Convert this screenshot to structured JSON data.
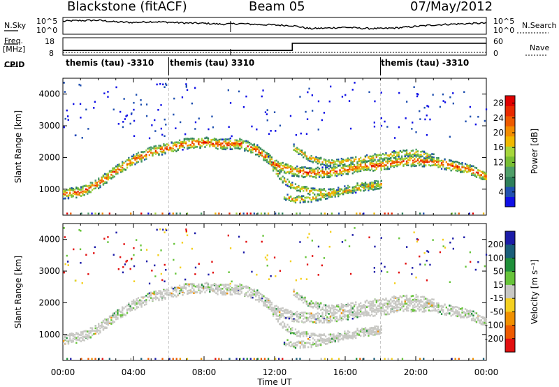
{
  "header": {
    "station": "Blackstone (fitACF)",
    "beam": "Beam 05",
    "date": "07/May/2012"
  },
  "side_labels": {
    "nsky": "N.Sky",
    "nsearch": "N.Search",
    "freq": "Freq.",
    "freq_unit": "[MHz]",
    "nave": "Nave",
    "cpid": "CPID"
  },
  "noise_axis": {
    "left_ticks": [
      "10^5",
      "10^0"
    ],
    "right_ticks": [
      "10^5",
      "10^0"
    ]
  },
  "freq_axis": {
    "left_ticks": [
      "18",
      "8"
    ],
    "right_ticks": [
      "60",
      "0"
    ]
  },
  "control_programs": [
    {
      "name": "themis (tau) -3310",
      "start_hour": 0
    },
    {
      "name": "themis (tau) 3310",
      "start_hour": 6
    },
    {
      "name": "themis (tau) -3310",
      "start_hour": 18
    }
  ],
  "chart_data": [
    {
      "type": "heatmap",
      "title": "",
      "panel": "power",
      "xlabel": "Time UT",
      "ylabel": "Slant Range [km]",
      "xlim": [
        "00:00",
        "24:00"
      ],
      "x_ticks": [
        "00:00",
        "04:00",
        "08:00",
        "12:00",
        "16:00",
        "20:00",
        "00:00"
      ],
      "ylim": [
        180,
        4500
      ],
      "y_ticks": [
        1000,
        2000,
        3000,
        4000
      ],
      "colorbar": {
        "label": "Power [dB]",
        "ticks": [
          4,
          8,
          12,
          16,
          20,
          24,
          28
        ],
        "range": [
          0,
          30
        ],
        "colors": [
          "#1010e6",
          "#2050b0",
          "#2e7f5a",
          "#4f9f69",
          "#78be34",
          "#a6d63b",
          "#f0b800",
          "#f28c00",
          "#ee5a00",
          "#e82a00",
          "#e00000"
        ]
      },
      "echo_bands": [
        {
          "name": "main band",
          "points": [
            [
              0.0,
              880
            ],
            [
              1.0,
              940
            ],
            [
              2.0,
              1220
            ],
            [
              3.0,
              1620
            ],
            [
              4.0,
              1960
            ],
            [
              5.0,
              2210
            ],
            [
              6.0,
              2330
            ],
            [
              7.0,
              2470
            ],
            [
              8.0,
              2500
            ],
            [
              9.0,
              2440
            ],
            [
              10.0,
              2460
            ],
            [
              11.0,
              2250
            ],
            [
              12.0,
              1800
            ],
            [
              13.0,
              1600
            ],
            [
              14.0,
              1540
            ],
            [
              15.0,
              1560
            ],
            [
              16.0,
              1650
            ],
            [
              17.0,
              1760
            ],
            [
              18.0,
              1780
            ],
            [
              19.0,
              1900
            ],
            [
              20.0,
              1920
            ],
            [
              21.0,
              1880
            ],
            [
              22.0,
              1770
            ],
            [
              23.0,
              1650
            ],
            [
              24.0,
              1420
            ]
          ]
        },
        {
          "name": "descending branch",
          "points": [
            [
              11.5,
              2050
            ],
            [
              12.0,
              1600
            ],
            [
              12.5,
              1300
            ],
            [
              13.0,
              1130
            ],
            [
              14.0,
              960
            ],
            [
              15.0,
              920
            ],
            [
              16.0,
              1020
            ],
            [
              17.0,
              1150
            ],
            [
              18.0,
              1200
            ]
          ]
        },
        {
          "name": "upper band",
          "points": [
            [
              13.0,
              2350
            ],
            [
              14.0,
              2000
            ],
            [
              15.0,
              1850
            ],
            [
              16.0,
              1900
            ],
            [
              17.0,
              1980
            ],
            [
              18.0,
              2050
            ],
            [
              19.0,
              2150
            ],
            [
              20.0,
              2180
            ],
            [
              21.0,
              2020
            ]
          ]
        },
        {
          "name": "lower fragments",
          "points": [
            [
              12.5,
              800
            ],
            [
              13.0,
              700
            ],
            [
              14.0,
              720
            ],
            [
              15.0,
              850
            ],
            [
              16.0,
              960
            ],
            [
              17.0,
              1080
            ],
            [
              18.0,
              1150
            ]
          ]
        }
      ]
    },
    {
      "type": "heatmap",
      "title": "",
      "panel": "velocity",
      "xlabel": "Time UT",
      "ylabel": "Slant Range [km]",
      "xlim": [
        "00:00",
        "24:00"
      ],
      "x_ticks": [
        "00:00",
        "04:00",
        "08:00",
        "12:00",
        "16:00",
        "20:00",
        "00:00"
      ],
      "ylim": [
        180,
        4500
      ],
      "y_ticks": [
        1000,
        2000,
        3000,
        4000
      ],
      "colorbar": {
        "label": "Velocity [m s⁻¹]",
        "ticks": [
          200,
          100,
          50,
          15,
          -15,
          -50,
          -100,
          -200
        ],
        "colors": [
          "#1c1ca8",
          "#1a5e7a",
          "#1f8f3a",
          "#67c43a",
          "#c8c8c4",
          "#f4d020",
          "#f09000",
          "#ee5a00",
          "#e21010"
        ]
      },
      "dominant_value": "ground scatter (grey, -15 to 15)"
    }
  ],
  "series_lines": {
    "noise_search": [
      [
        0,
        0.82
      ],
      [
        0.4,
        0.86
      ],
      [
        1,
        0.88
      ],
      [
        2,
        0.9
      ],
      [
        3,
        0.78
      ],
      [
        4,
        0.74
      ],
      [
        5,
        0.8
      ],
      [
        6,
        0.76
      ],
      [
        7,
        0.7
      ],
      [
        8,
        0.68
      ],
      [
        9,
        0.62
      ],
      [
        10,
        0.66
      ],
      [
        11,
        0.6
      ],
      [
        12,
        0.56
      ],
      [
        13,
        0.52
      ],
      [
        14,
        0.3
      ],
      [
        15,
        0.34
      ],
      [
        16,
        0.4
      ],
      [
        17,
        0.32
      ],
      [
        18,
        0.3
      ],
      [
        19,
        0.36
      ],
      [
        20,
        0.46
      ],
      [
        21,
        0.56
      ],
      [
        22,
        0.62
      ],
      [
        23,
        0.66
      ],
      [
        24,
        0.7
      ]
    ],
    "frequency_mhz": [
      [
        0,
        10.3
      ],
      [
        13,
        10.3
      ],
      [
        13,
        15.2
      ],
      [
        24,
        15.2
      ]
    ],
    "nave": [
      [
        0,
        3
      ],
      [
        24,
        3
      ]
    ]
  }
}
